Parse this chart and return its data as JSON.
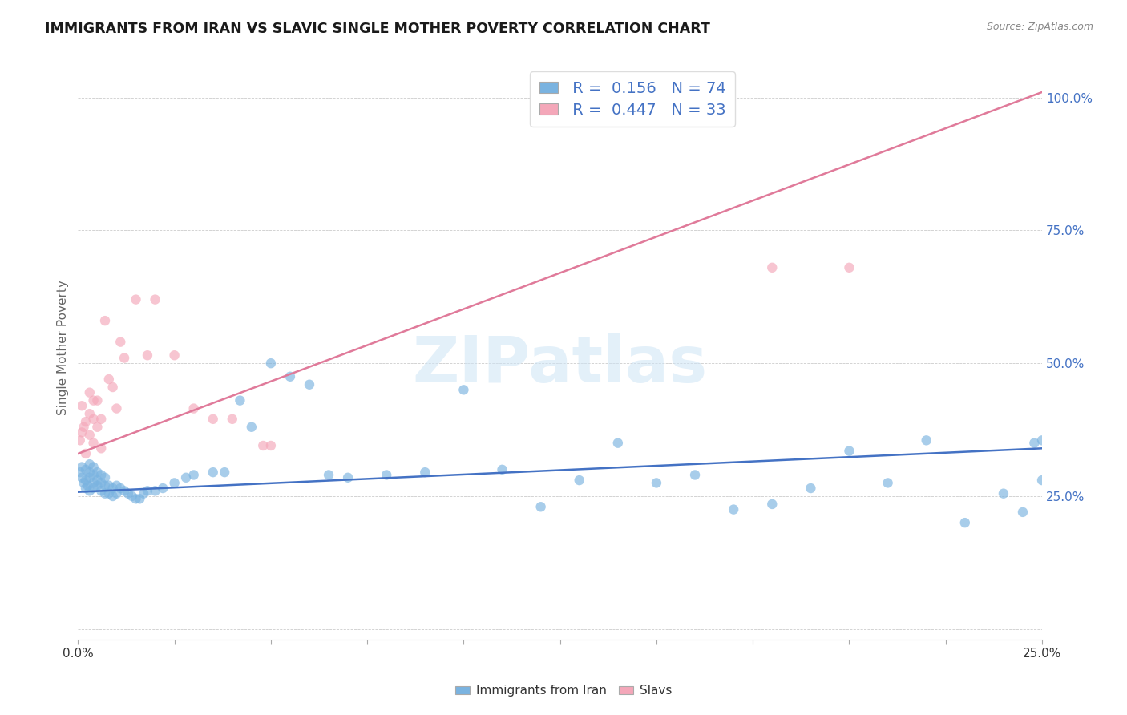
{
  "title": "IMMIGRANTS FROM IRAN VS SLAVIC SINGLE MOTHER POVERTY CORRELATION CHART",
  "source": "Source: ZipAtlas.com",
  "ylabel": "Single Mother Poverty",
  "yticks": [
    0.0,
    0.25,
    0.5,
    0.75,
    1.0
  ],
  "ytick_labels": [
    "",
    "25.0%",
    "50.0%",
    "75.0%",
    "100.0%"
  ],
  "xtick_labels": [
    "0.0%",
    "",
    "",
    "",
    "",
    "",
    "",
    "",
    "",
    "",
    "25.0%"
  ],
  "xlim": [
    0.0,
    0.25
  ],
  "ylim": [
    -0.02,
    1.08
  ],
  "blue_color": "#7ab3e0",
  "pink_color": "#f4a7b9",
  "blue_line_color": "#4472c4",
  "pink_line_color": "#e07a9a",
  "tick_label_color": "#4472c4",
  "ylabel_color": "#666666",
  "watermark": "ZIPatlas",
  "legend_R_blue": "0.156",
  "legend_N_blue": "74",
  "legend_R_pink": "0.447",
  "legend_N_pink": "33",
  "blue_x": [
    0.0005,
    0.001,
    0.001,
    0.0015,
    0.002,
    0.002,
    0.002,
    0.0025,
    0.003,
    0.003,
    0.003,
    0.003,
    0.004,
    0.004,
    0.004,
    0.004,
    0.005,
    0.005,
    0.005,
    0.006,
    0.006,
    0.006,
    0.007,
    0.007,
    0.007,
    0.008,
    0.008,
    0.009,
    0.009,
    0.01,
    0.01,
    0.011,
    0.012,
    0.013,
    0.014,
    0.015,
    0.016,
    0.017,
    0.018,
    0.02,
    0.022,
    0.025,
    0.028,
    0.03,
    0.035,
    0.038,
    0.042,
    0.045,
    0.05,
    0.055,
    0.06,
    0.065,
    0.07,
    0.08,
    0.09,
    0.1,
    0.11,
    0.12,
    0.13,
    0.14,
    0.15,
    0.16,
    0.17,
    0.18,
    0.19,
    0.2,
    0.21,
    0.22,
    0.23,
    0.24,
    0.245,
    0.248,
    0.25,
    0.25
  ],
  "blue_y": [
    0.295,
    0.285,
    0.305,
    0.275,
    0.265,
    0.28,
    0.3,
    0.27,
    0.26,
    0.285,
    0.295,
    0.31,
    0.265,
    0.275,
    0.29,
    0.305,
    0.27,
    0.28,
    0.295,
    0.26,
    0.275,
    0.29,
    0.255,
    0.27,
    0.285,
    0.255,
    0.27,
    0.25,
    0.265,
    0.255,
    0.27,
    0.265,
    0.26,
    0.255,
    0.25,
    0.245,
    0.245,
    0.255,
    0.26,
    0.26,
    0.265,
    0.275,
    0.285,
    0.29,
    0.295,
    0.295,
    0.43,
    0.38,
    0.5,
    0.475,
    0.46,
    0.29,
    0.285,
    0.29,
    0.295,
    0.45,
    0.3,
    0.23,
    0.28,
    0.35,
    0.275,
    0.29,
    0.225,
    0.235,
    0.265,
    0.335,
    0.275,
    0.355,
    0.2,
    0.255,
    0.22,
    0.35,
    0.28,
    0.355
  ],
  "pink_x": [
    0.0005,
    0.001,
    0.001,
    0.0015,
    0.002,
    0.002,
    0.003,
    0.003,
    0.003,
    0.004,
    0.004,
    0.004,
    0.005,
    0.005,
    0.006,
    0.006,
    0.007,
    0.008,
    0.009,
    0.01,
    0.011,
    0.012,
    0.015,
    0.018,
    0.02,
    0.025,
    0.03,
    0.035,
    0.04,
    0.048,
    0.05,
    0.18,
    0.2
  ],
  "pink_y": [
    0.355,
    0.37,
    0.42,
    0.38,
    0.39,
    0.33,
    0.405,
    0.445,
    0.365,
    0.395,
    0.43,
    0.35,
    0.38,
    0.43,
    0.395,
    0.34,
    0.58,
    0.47,
    0.455,
    0.415,
    0.54,
    0.51,
    0.62,
    0.515,
    0.62,
    0.515,
    0.415,
    0.395,
    0.395,
    0.345,
    0.345,
    0.68,
    0.68
  ],
  "blue_trend_x": [
    0.0,
    0.25
  ],
  "blue_trend_y": [
    0.258,
    0.34
  ],
  "pink_trend_x": [
    0.0,
    0.25
  ],
  "pink_trend_y": [
    0.33,
    1.01
  ]
}
